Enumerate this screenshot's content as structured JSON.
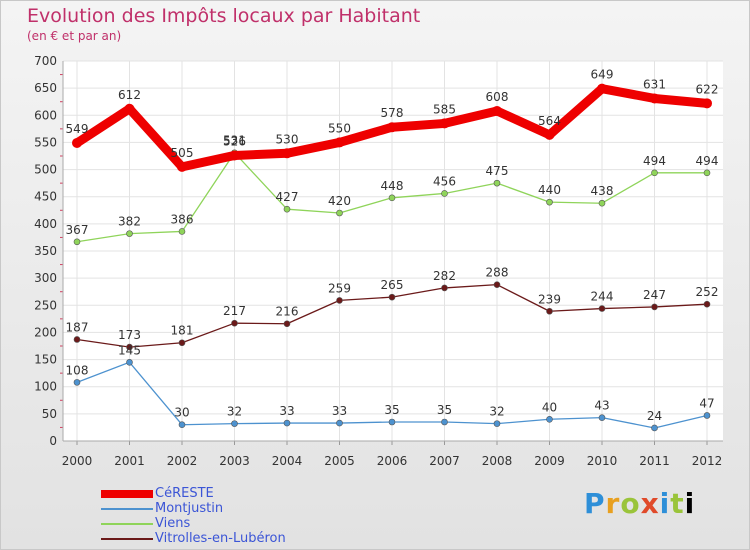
{
  "header": {
    "title": "Evolution des Impôts locaux par Habitant",
    "subtitle": "(en € et par an)"
  },
  "logo": {
    "text": "Proxiti"
  },
  "chart_data": {
    "type": "line",
    "title": "Evolution des Impôts locaux par Habitant",
    "subtitle": "(en € et par an)",
    "xlabel": "",
    "ylabel": "",
    "ylim": [
      0,
      700
    ],
    "yticks": [
      0,
      50,
      100,
      150,
      200,
      250,
      300,
      350,
      400,
      450,
      500,
      550,
      600,
      650,
      700
    ],
    "x": [
      "2000",
      "2001",
      "2002",
      "2003",
      "2004",
      "2005",
      "2006",
      "2007",
      "2008",
      "2009",
      "2010",
      "2011",
      "2012"
    ],
    "grid": true,
    "legend": "bottom-left",
    "series": [
      {
        "name": "CéRESTE",
        "color": "#ee0000",
        "values": [
          549,
          612,
          505,
          526,
          530,
          550,
          578,
          585,
          608,
          564,
          649,
          631,
          622
        ]
      },
      {
        "name": "Montjustin",
        "color": "#4d92cf",
        "values": [
          108,
          145,
          30,
          32,
          33,
          33,
          35,
          35,
          32,
          40,
          43,
          24,
          47
        ]
      },
      {
        "name": "Viens",
        "color": "#8fd45a",
        "values": [
          367,
          382,
          386,
          531,
          427,
          420,
          448,
          456,
          475,
          440,
          438,
          494,
          494
        ]
      },
      {
        "name": "Vitrolles-en-Lubéron",
        "color": "#6b1a1a",
        "values": [
          187,
          173,
          181,
          217,
          216,
          259,
          265,
          282,
          288,
          239,
          244,
          247,
          252
        ]
      }
    ]
  }
}
